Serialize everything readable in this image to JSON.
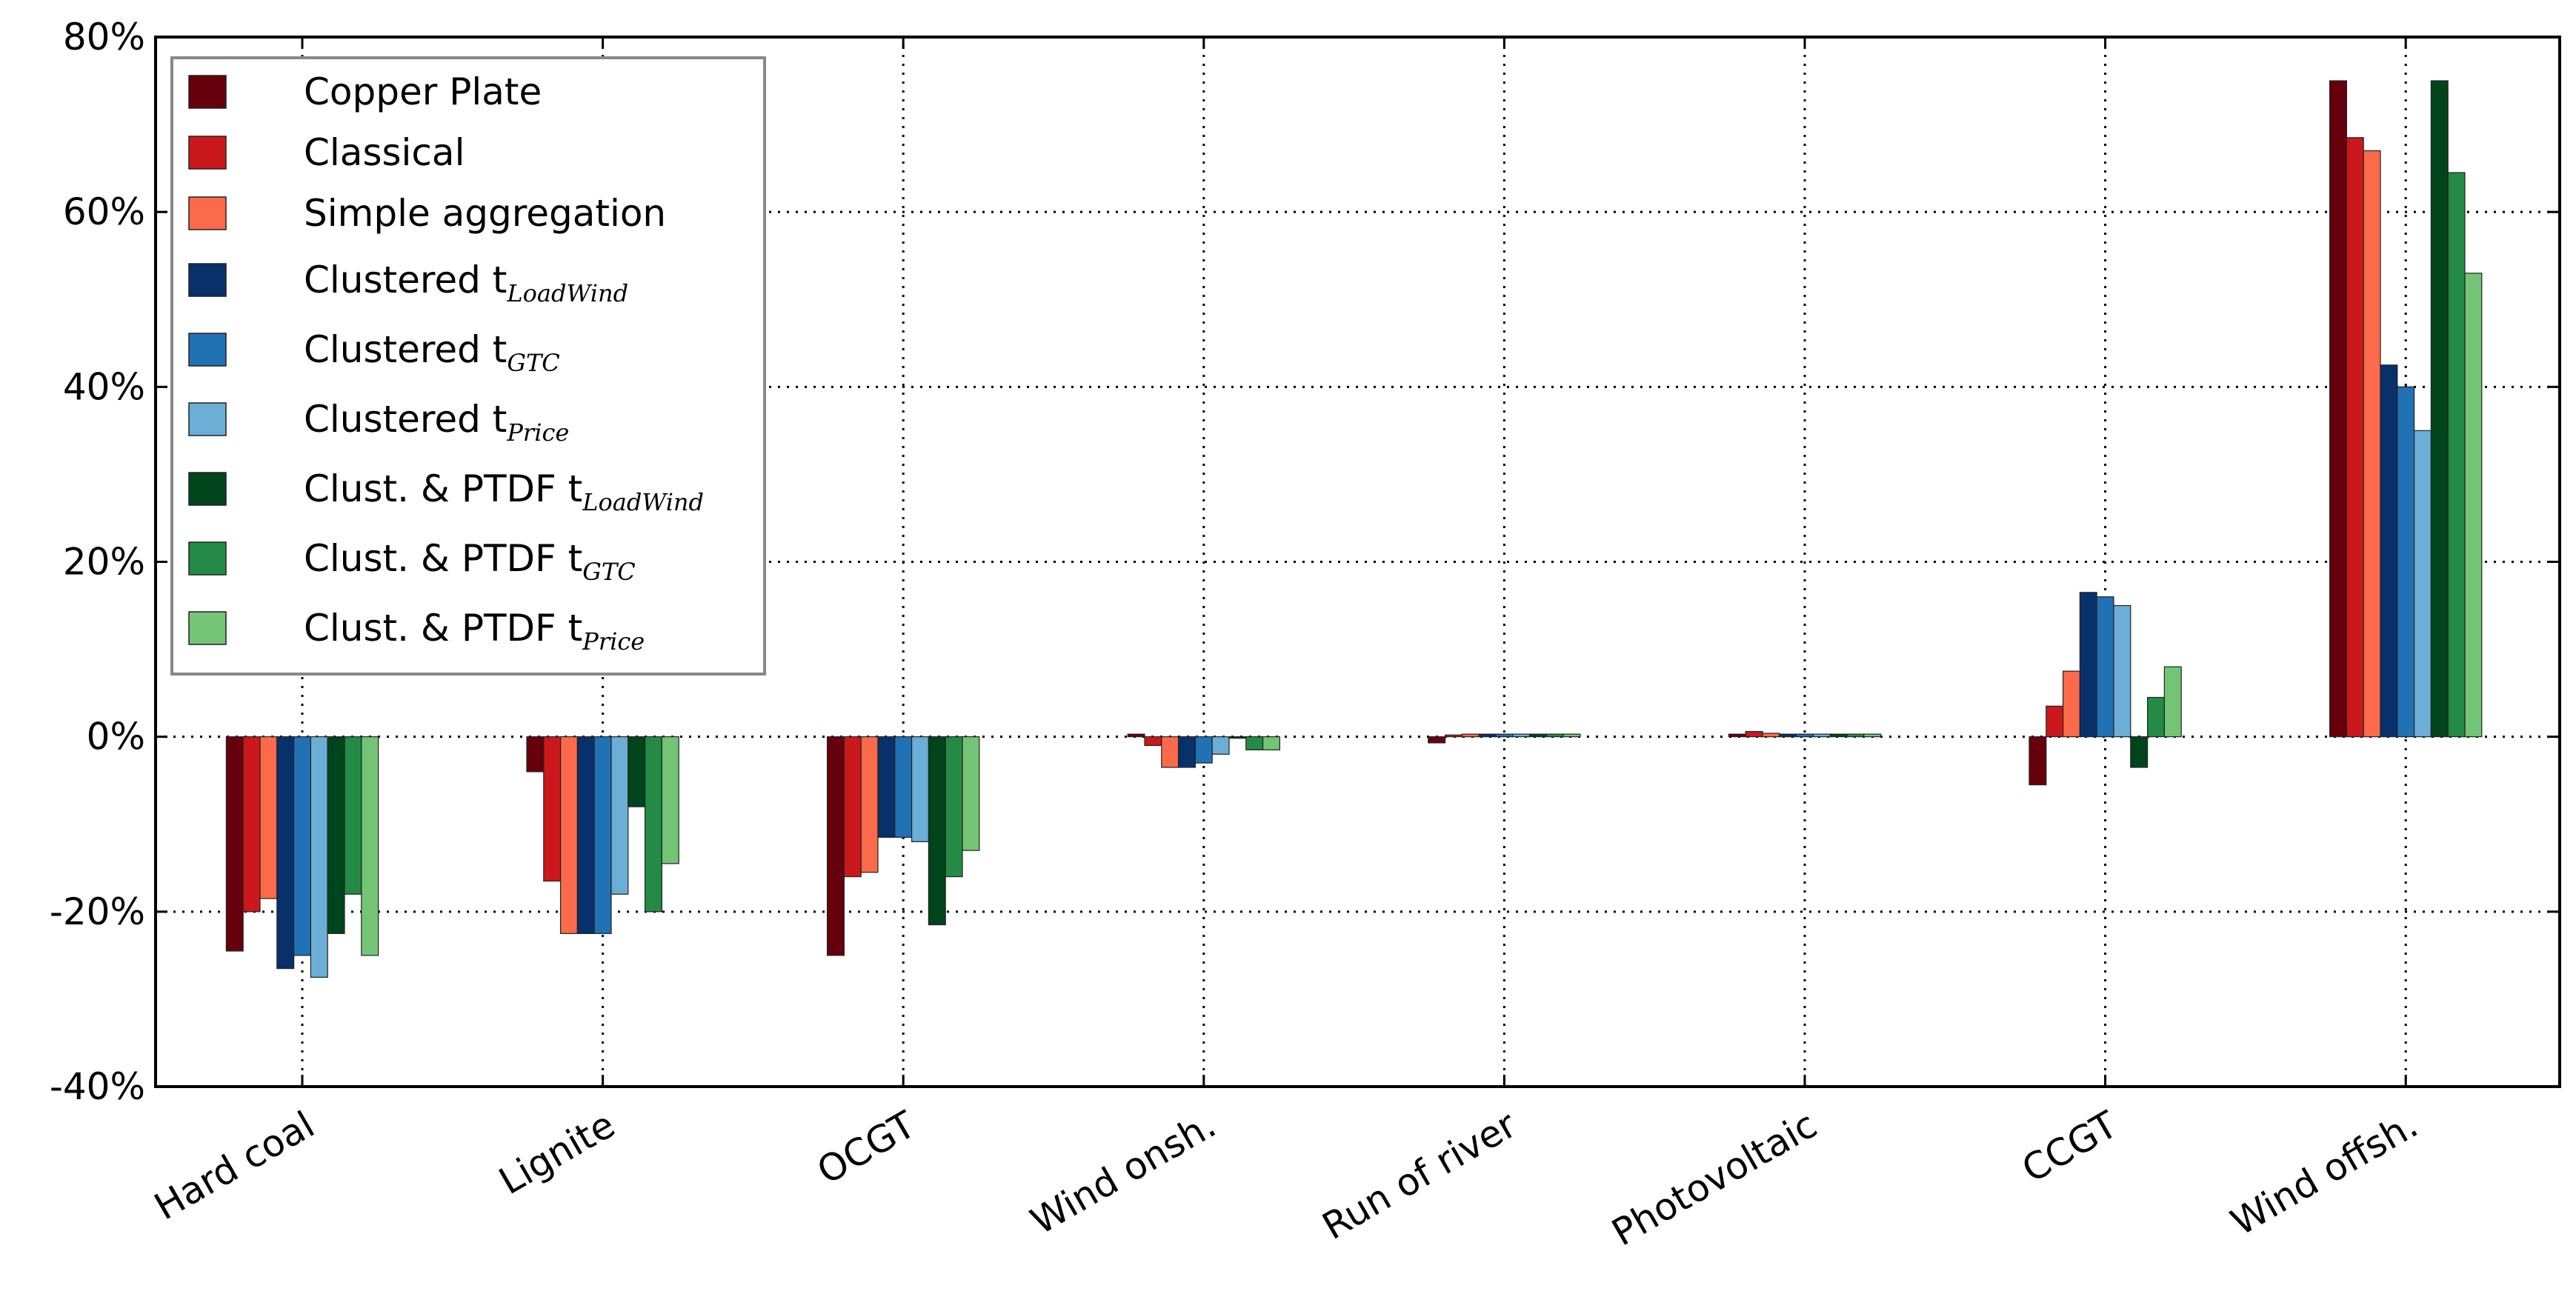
{
  "chart_data": {
    "type": "bar",
    "title": "",
    "xlabel": "",
    "ylabel": "",
    "ylim": [
      -40,
      80
    ],
    "yticks": [
      -40,
      -20,
      0,
      20,
      40,
      60,
      80
    ],
    "ytick_labels": [
      "-40%",
      "-20%",
      "0%",
      "20%",
      "40%",
      "60%",
      "80%"
    ],
    "grid": true,
    "legend_position": "top-left",
    "categories": [
      "Hard coal",
      "Lignite",
      "OCGT",
      "Wind onsh.",
      "Run of river",
      "Photovoltaic",
      "CCGT",
      "Wind offsh."
    ],
    "series": [
      {
        "name": "Copper Plate",
        "legend_main": "Copper Plate",
        "legend_sub": "",
        "color": "#67000d",
        "values": [
          -24.5,
          -4,
          -25,
          0.3,
          -0.7,
          0.3,
          -5.5,
          75
        ]
      },
      {
        "name": "Classical",
        "legend_main": "Classical",
        "legend_sub": "",
        "color": "#cb181d",
        "values": [
          -20,
          -16.5,
          -16,
          -1,
          0.2,
          0.6,
          3.5,
          68.5
        ]
      },
      {
        "name": "Simple aggregation",
        "legend_main": "Simple aggregation",
        "legend_sub": "",
        "color": "#fb6a4a",
        "values": [
          -18.5,
          -22.5,
          -15.5,
          -3.5,
          0.3,
          0.4,
          7.5,
          67
        ]
      },
      {
        "name": "Clustered t_LoadWind",
        "legend_main": "Clustered t",
        "legend_sub": "LoadWind",
        "color": "#08306b",
        "values": [
          -26.5,
          -22.5,
          -11.5,
          -3.5,
          0.3,
          0.3,
          16.5,
          42.5
        ]
      },
      {
        "name": "Clustered t_GTC",
        "legend_main": "Clustered t",
        "legend_sub": "GTC",
        "color": "#2171b5",
        "values": [
          -25,
          -22.5,
          -11.5,
          -3,
          0.3,
          0.3,
          16,
          40
        ]
      },
      {
        "name": "Clustered t_Price",
        "legend_main": "Clustered t",
        "legend_sub": "Price",
        "color": "#6baed6",
        "values": [
          -27.5,
          -18,
          -12,
          -2,
          0.3,
          0.3,
          15,
          35
        ]
      },
      {
        "name": "Clust. & PTDF t_LoadWind",
        "legend_main": "Clust. & PTDF t",
        "legend_sub": "LoadWind",
        "color": "#00441b",
        "values": [
          -22.5,
          -8,
          -21.5,
          0,
          0.3,
          0.3,
          -3.5,
          75
        ]
      },
      {
        "name": "Clust. & PTDF t_GTC",
        "legend_main": "Clust. & PTDF t",
        "legend_sub": "GTC",
        "color": "#238b45",
        "values": [
          -18,
          -20,
          -16,
          -1.5,
          0.3,
          0.3,
          4.5,
          64.5
        ]
      },
      {
        "name": "Clust. & PTDF t_Price",
        "legend_main": "Clust. & PTDF t",
        "legend_sub": "Price",
        "color": "#74c476",
        "values": [
          -25,
          -14.5,
          -13,
          -1.5,
          0.3,
          0.3,
          8,
          53
        ]
      }
    ]
  }
}
